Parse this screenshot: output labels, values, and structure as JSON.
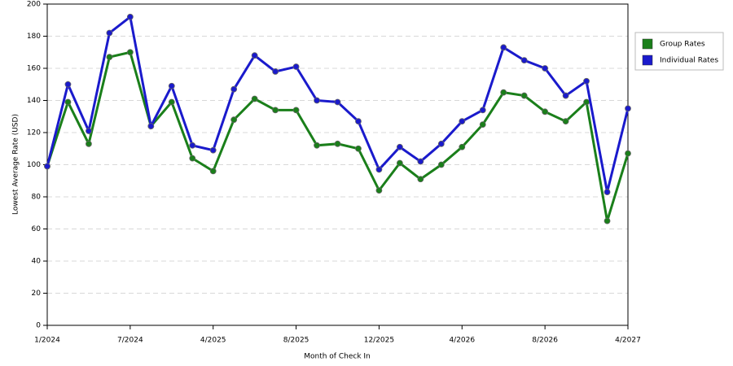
{
  "chart_data": {
    "type": "line",
    "x_label": "Month of Check In",
    "y_label": "Lowest Average Rate (USD)",
    "categories": [
      "1/2024",
      null,
      null,
      null,
      "7/2024",
      null,
      null,
      null,
      "4/2025",
      null,
      null,
      null,
      "8/2025",
      null,
      null,
      null,
      "12/2025",
      null,
      null,
      null,
      "4/2026",
      null,
      null,
      null,
      "8/2026",
      null,
      null,
      null,
      "4/2027"
    ],
    "series": [
      {
        "name": "Group Rates",
        "color": "#1a7f1a",
        "values": [
          99,
          139,
          113,
          167,
          170,
          124,
          139,
          104,
          96,
          128,
          141,
          134,
          134,
          112,
          113,
          110,
          84,
          101,
          91,
          100,
          111,
          125,
          145,
          143,
          133,
          127,
          139,
          65,
          107
        ]
      },
      {
        "name": "Individual Rates",
        "color": "#1a1acc",
        "values": [
          99,
          150,
          121,
          182,
          192,
          124,
          149,
          112,
          109,
          147,
          168,
          158,
          161,
          140,
          139,
          127,
          97,
          111,
          102,
          113,
          127,
          134,
          173,
          165,
          160,
          143,
          152,
          83,
          135
        ]
      }
    ],
    "ylim": [
      0,
      200
    ],
    "yticks": [
      0,
      20,
      40,
      60,
      80,
      100,
      120,
      140,
      160,
      180,
      200
    ],
    "grid": true,
    "legend": "right"
  }
}
